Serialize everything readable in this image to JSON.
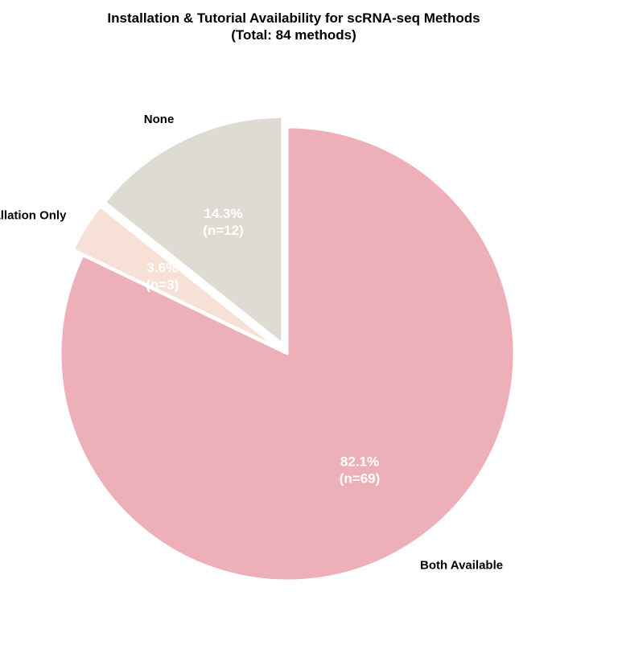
{
  "chart_data": {
    "type": "pie",
    "title": "Installation & Tutorial Availability for scRNA-seq Methods",
    "subtitle": "(Total: 84 methods)",
    "slices": [
      {
        "label": "Both Available",
        "value": 69,
        "percent_label": "82.1%",
        "count_label": "(n=69)",
        "color": "#EDAFB8",
        "exploded": false
      },
      {
        "label": "Installation Only",
        "value": 3,
        "percent_label": "3.6%",
        "count_label": "(n=3)",
        "color": "#F7E1D7",
        "exploded": true
      },
      {
        "label": "None",
        "value": 12,
        "percent_label": "14.3%",
        "count_label": "(n=12)",
        "color": "#DEDBD2",
        "exploded": true
      }
    ],
    "start_angle_deg": 90,
    "direction": "clockwise",
    "legend": "none"
  }
}
